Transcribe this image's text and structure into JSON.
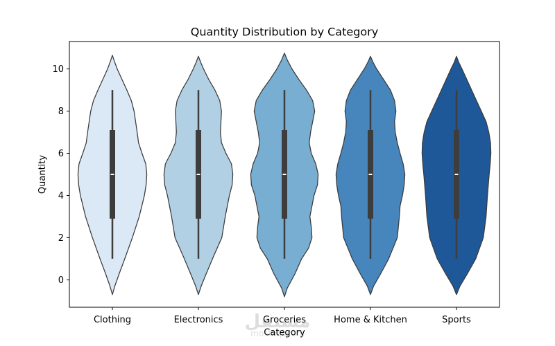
{
  "chart_data": {
    "type": "violin",
    "title": "Quantity Distribution by Category",
    "xlabel": "Category",
    "ylabel": "Quantity",
    "ylim": [
      -1.3,
      11.3
    ],
    "yticks": [
      0,
      2,
      4,
      6,
      8,
      10
    ],
    "grid": false,
    "legend": "none",
    "categories": [
      "Clothing",
      "Electronics",
      "Groceries",
      "Home & Kitchen",
      "Sports"
    ],
    "series": [
      {
        "category": "Clothing",
        "color": "#dbe8f5",
        "min": 1,
        "q1": 2.9,
        "median": 5,
        "q3": 7.1,
        "max": 9,
        "density": [
          [
            -0.7,
            0.0
          ],
          [
            -0.3,
            0.07
          ],
          [
            0.3,
            0.2
          ],
          [
            1,
            0.36
          ],
          [
            2,
            0.58
          ],
          [
            3,
            0.78
          ],
          [
            4,
            0.93
          ],
          [
            4.5,
            0.98
          ],
          [
            5,
            1.0
          ],
          [
            5.5,
            0.97
          ],
          [
            6,
            0.86
          ],
          [
            6.5,
            0.76
          ],
          [
            7,
            0.72
          ],
          [
            8,
            0.63
          ],
          [
            8.5,
            0.55
          ],
          [
            9,
            0.42
          ],
          [
            9.5,
            0.28
          ],
          [
            10,
            0.14
          ],
          [
            10.4,
            0.05
          ],
          [
            10.65,
            0.0
          ]
        ]
      },
      {
        "category": "Electronics",
        "color": "#b2d0e4",
        "min": 1,
        "q1": 2.9,
        "median": 5,
        "q3": 7.1,
        "max": 9,
        "density": [
          [
            -0.7,
            0.0
          ],
          [
            -0.3,
            0.08
          ],
          [
            0.3,
            0.23
          ],
          [
            1,
            0.41
          ],
          [
            2,
            0.68
          ],
          [
            3,
            0.78
          ],
          [
            4,
            0.9
          ],
          [
            4.5,
            0.98
          ],
          [
            5,
            1.0
          ],
          [
            5.5,
            0.96
          ],
          [
            6,
            0.8
          ],
          [
            6.5,
            0.67
          ],
          [
            7,
            0.64
          ],
          [
            8,
            0.67
          ],
          [
            8.5,
            0.62
          ],
          [
            9,
            0.48
          ],
          [
            9.5,
            0.3
          ],
          [
            10,
            0.15
          ],
          [
            10.3,
            0.07
          ],
          [
            10.6,
            0.0
          ]
        ]
      },
      {
        "category": "Groceries",
        "color": "#78aed1",
        "min": 1,
        "q1": 2.9,
        "median": 5,
        "q3": 7.1,
        "max": 9,
        "density": [
          [
            -0.8,
            0.0
          ],
          [
            -0.4,
            0.08
          ],
          [
            0.3,
            0.31
          ],
          [
            1,
            0.5
          ],
          [
            1.5,
            0.7
          ],
          [
            2,
            0.8
          ],
          [
            2.5,
            0.78
          ],
          [
            3,
            0.74
          ],
          [
            4,
            0.86
          ],
          [
            4.5,
            0.96
          ],
          [
            5,
            0.98
          ],
          [
            5.5,
            0.91
          ],
          [
            6,
            0.78
          ],
          [
            6.5,
            0.72
          ],
          [
            7,
            0.76
          ],
          [
            8,
            0.88
          ],
          [
            8.5,
            0.82
          ],
          [
            9,
            0.64
          ],
          [
            9.5,
            0.42
          ],
          [
            10,
            0.22
          ],
          [
            10.4,
            0.09
          ],
          [
            10.75,
            0.0
          ]
        ]
      },
      {
        "category": "Home & Kitchen",
        "color": "#4686bd",
        "min": 1,
        "q1": 2.9,
        "median": 5,
        "q3": 7.1,
        "max": 9,
        "density": [
          [
            -0.7,
            0.0
          ],
          [
            -0.3,
            0.09
          ],
          [
            0.3,
            0.3
          ],
          [
            1,
            0.53
          ],
          [
            2,
            0.78
          ],
          [
            3,
            0.84
          ],
          [
            3.5,
            0.86
          ],
          [
            4,
            0.93
          ],
          [
            4.5,
            0.98
          ],
          [
            5,
            1.0
          ],
          [
            5.5,
            0.95
          ],
          [
            6,
            0.86
          ],
          [
            6.5,
            0.78
          ],
          [
            7,
            0.72
          ],
          [
            7.5,
            0.7
          ],
          [
            8,
            0.74
          ],
          [
            8.5,
            0.7
          ],
          [
            9,
            0.58
          ],
          [
            9.5,
            0.38
          ],
          [
            10,
            0.18
          ],
          [
            10.3,
            0.08
          ],
          [
            10.6,
            0.0
          ]
        ]
      },
      {
        "category": "Sports",
        "color": "#1f5899",
        "min": 1,
        "q1": 2.9,
        "median": 5,
        "q3": 7.1,
        "max": 9,
        "density": [
          [
            -0.7,
            0.0
          ],
          [
            -0.3,
            0.1
          ],
          [
            0.3,
            0.32
          ],
          [
            1,
            0.56
          ],
          [
            2,
            0.78
          ],
          [
            3,
            0.86
          ],
          [
            4,
            0.9
          ],
          [
            5,
            0.95
          ],
          [
            5.5,
            0.98
          ],
          [
            6,
            1.0
          ],
          [
            6.5,
            0.99
          ],
          [
            7,
            0.94
          ],
          [
            7.5,
            0.86
          ],
          [
            8,
            0.72
          ],
          [
            8.5,
            0.58
          ],
          [
            9,
            0.44
          ],
          [
            9.5,
            0.3
          ],
          [
            10,
            0.16
          ],
          [
            10.3,
            0.07
          ],
          [
            10.6,
            0.0
          ]
        ]
      }
    ]
  },
  "watermark": {
    "main": "مستقل",
    "sub": "mostaql.com"
  }
}
